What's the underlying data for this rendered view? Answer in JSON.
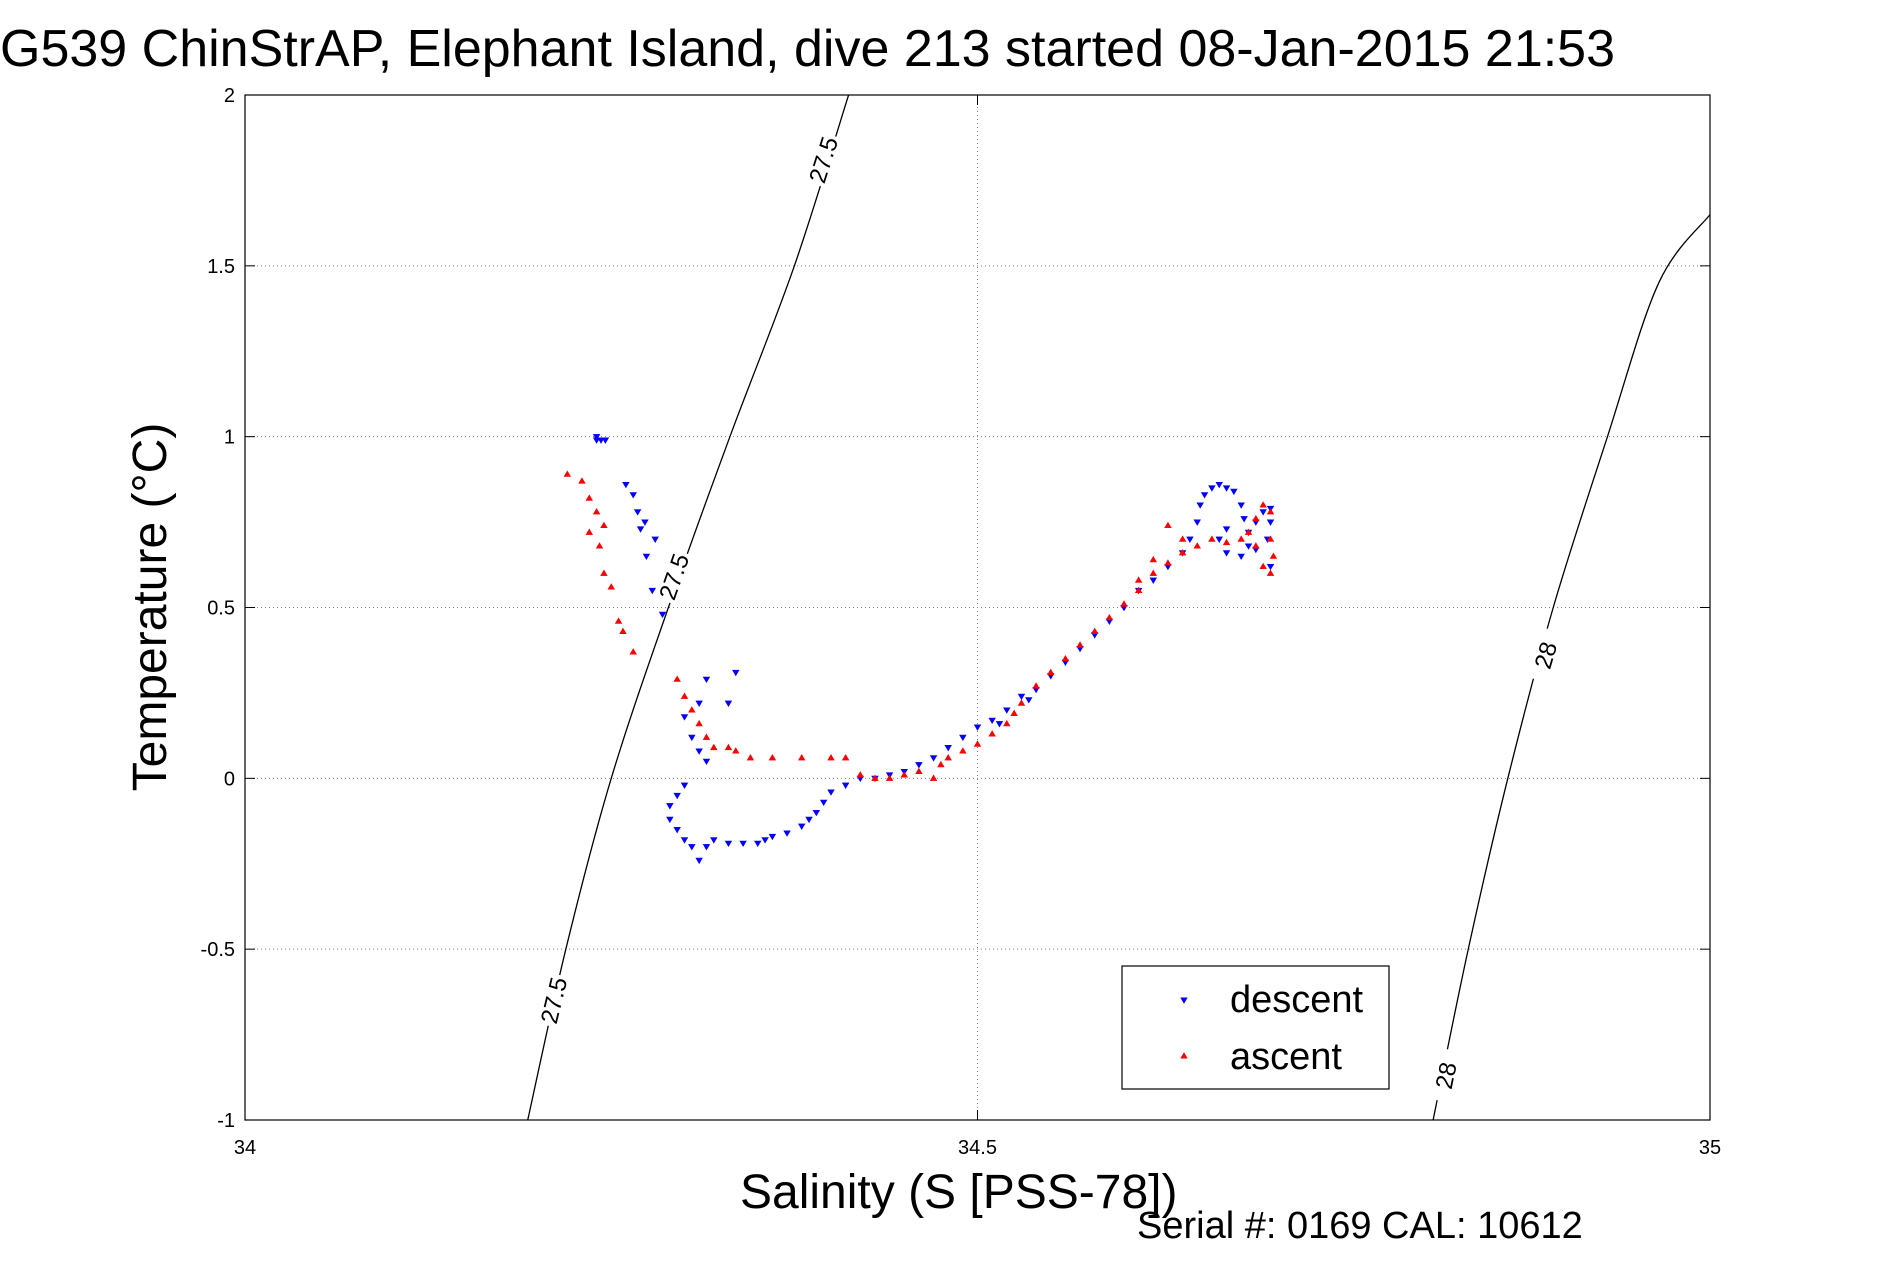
{
  "title": "G539 ChinStrAP, Elephant Island, dive 213 started 08-Jan-2015 21:53",
  "footer": "Serial #: 0169 CAL: 10612",
  "chart_data": {
    "type": "scatter",
    "xlabel": "Salinity (S [PSS-78])",
    "ylabel": "Temperature (°C)",
    "xlim": [
      34,
      35
    ],
    "ylim": [
      -1,
      2
    ],
    "xticks": [
      34,
      34.5,
      35
    ],
    "xtick_labels": [
      "34",
      "34.5",
      "35"
    ],
    "yticks": [
      -1,
      -0.5,
      0,
      0.5,
      1,
      1.5,
      2
    ],
    "ytick_labels": [
      "-1",
      "-0.5",
      "0",
      "0.5",
      "1",
      "1.5",
      "2"
    ],
    "grid": true,
    "legend_position": "bottom-right",
    "colors": {
      "descent": "#0000ff",
      "ascent": "#ff0000",
      "contour": "#000000"
    },
    "contours": [
      {
        "level_label": "27.5",
        "points": [
          [
            34.193,
            -1.0
          ],
          [
            34.219,
            -0.5
          ],
          [
            34.25,
            0.0
          ],
          [
            34.289,
            0.5
          ],
          [
            34.331,
            1.0
          ],
          [
            34.375,
            1.5
          ],
          [
            34.412,
            2.0
          ]
        ],
        "labels_at": [
          [
            34.211,
            -0.65
          ],
          [
            34.293,
            0.59
          ],
          [
            34.395,
            1.81
          ]
        ]
      },
      {
        "level_label": "28",
        "points": [
          [
            34.811,
            -1.0
          ],
          [
            34.835,
            -0.5
          ],
          [
            34.862,
            0.0
          ],
          [
            34.893,
            0.5
          ],
          [
            34.93,
            1.0
          ],
          [
            34.965,
            1.45
          ],
          [
            35.0,
            1.65
          ]
        ],
        "labels_at": [
          [
            34.82,
            -0.87
          ],
          [
            34.888,
            0.36
          ]
        ]
      }
    ],
    "series": [
      {
        "name": "descent",
        "marker": "triangle-down",
        "points": [
          [
            34.24,
            0.99
          ],
          [
            34.24,
            1.0
          ],
          [
            34.243,
            0.99
          ],
          [
            34.246,
            0.99
          ],
          [
            34.26,
            0.86
          ],
          [
            34.265,
            0.83
          ],
          [
            34.268,
            0.78
          ],
          [
            34.273,
            0.75
          ],
          [
            34.28,
            0.7
          ],
          [
            34.27,
            0.73
          ],
          [
            34.274,
            0.65
          ],
          [
            34.278,
            0.55
          ],
          [
            34.285,
            0.48
          ],
          [
            34.335,
            0.31
          ],
          [
            34.315,
            0.29
          ],
          [
            34.33,
            0.22
          ],
          [
            34.31,
            0.22
          ],
          [
            34.3,
            0.18
          ],
          [
            34.305,
            0.12
          ],
          [
            34.31,
            0.08
          ],
          [
            34.315,
            0.05
          ],
          [
            34.3,
            -0.02
          ],
          [
            34.295,
            -0.05
          ],
          [
            34.29,
            -0.08
          ],
          [
            34.29,
            -0.12
          ],
          [
            34.295,
            -0.15
          ],
          [
            34.3,
            -0.18
          ],
          [
            34.305,
            -0.2
          ],
          [
            34.31,
            -0.24
          ],
          [
            34.315,
            -0.2
          ],
          [
            34.32,
            -0.18
          ],
          [
            34.33,
            -0.19
          ],
          [
            34.34,
            -0.19
          ],
          [
            34.35,
            -0.19
          ],
          [
            34.355,
            -0.18
          ],
          [
            34.36,
            -0.17
          ],
          [
            34.37,
            -0.16
          ],
          [
            34.38,
            -0.14
          ],
          [
            34.385,
            -0.12
          ],
          [
            34.39,
            -0.1
          ],
          [
            34.395,
            -0.07
          ],
          [
            34.4,
            -0.04
          ],
          [
            34.41,
            -0.02
          ],
          [
            34.42,
            0.0
          ],
          [
            34.43,
            0.0
          ],
          [
            34.44,
            0.01
          ],
          [
            34.45,
            0.02
          ],
          [
            34.46,
            0.04
          ],
          [
            34.47,
            0.06
          ],
          [
            34.48,
            0.09
          ],
          [
            34.49,
            0.12
          ],
          [
            34.5,
            0.15
          ],
          [
            34.51,
            0.17
          ],
          [
            34.515,
            0.16
          ],
          [
            34.52,
            0.2
          ],
          [
            34.53,
            0.24
          ],
          [
            34.535,
            0.23
          ],
          [
            34.54,
            0.26
          ],
          [
            34.55,
            0.3
          ],
          [
            34.56,
            0.34
          ],
          [
            34.57,
            0.38
          ],
          [
            34.58,
            0.42
          ],
          [
            34.59,
            0.46
          ],
          [
            34.6,
            0.5
          ],
          [
            34.61,
            0.55
          ],
          [
            34.62,
            0.58
          ],
          [
            34.63,
            0.62
          ],
          [
            34.64,
            0.66
          ],
          [
            34.645,
            0.7
          ],
          [
            34.65,
            0.75
          ],
          [
            34.652,
            0.8
          ],
          [
            34.655,
            0.83
          ],
          [
            34.66,
            0.85
          ],
          [
            34.665,
            0.86
          ],
          [
            34.67,
            0.85
          ],
          [
            34.675,
            0.84
          ],
          [
            34.68,
            0.8
          ],
          [
            34.682,
            0.76
          ],
          [
            34.685,
            0.72
          ],
          [
            34.69,
            0.75
          ],
          [
            34.695,
            0.78
          ],
          [
            34.7,
            0.79
          ],
          [
            34.7,
            0.75
          ],
          [
            34.698,
            0.7
          ],
          [
            34.69,
            0.67
          ],
          [
            34.68,
            0.65
          ],
          [
            34.67,
            0.66
          ],
          [
            34.665,
            0.7
          ],
          [
            34.67,
            0.73
          ],
          [
            34.685,
            0.68
          ],
          [
            34.7,
            0.62
          ]
        ]
      },
      {
        "name": "ascent",
        "marker": "triangle-up",
        "points": [
          [
            34.22,
            0.89
          ],
          [
            34.23,
            0.87
          ],
          [
            34.235,
            0.82
          ],
          [
            34.24,
            0.78
          ],
          [
            34.245,
            0.74
          ],
          [
            34.235,
            0.72
          ],
          [
            34.242,
            0.68
          ],
          [
            34.245,
            0.6
          ],
          [
            34.25,
            0.56
          ],
          [
            34.255,
            0.46
          ],
          [
            34.258,
            0.43
          ],
          [
            34.265,
            0.37
          ],
          [
            34.295,
            0.29
          ],
          [
            34.3,
            0.24
          ],
          [
            34.305,
            0.2
          ],
          [
            34.31,
            0.16
          ],
          [
            34.315,
            0.12
          ],
          [
            34.32,
            0.09
          ],
          [
            34.33,
            0.09
          ],
          [
            34.335,
            0.08
          ],
          [
            34.345,
            0.06
          ],
          [
            34.36,
            0.06
          ],
          [
            34.38,
            0.06
          ],
          [
            34.4,
            0.06
          ],
          [
            34.41,
            0.06
          ],
          [
            34.42,
            0.01
          ],
          [
            34.43,
            0.0
          ],
          [
            34.44,
            0.0
          ],
          [
            34.45,
            0.01
          ],
          [
            34.46,
            0.02
          ],
          [
            34.47,
            0.0
          ],
          [
            34.475,
            0.04
          ],
          [
            34.48,
            0.06
          ],
          [
            34.49,
            0.08
          ],
          [
            34.5,
            0.1
          ],
          [
            34.51,
            0.13
          ],
          [
            34.52,
            0.16
          ],
          [
            34.525,
            0.19
          ],
          [
            34.53,
            0.22
          ],
          [
            34.54,
            0.27
          ],
          [
            34.55,
            0.31
          ],
          [
            34.56,
            0.35
          ],
          [
            34.57,
            0.39
          ],
          [
            34.58,
            0.43
          ],
          [
            34.59,
            0.47
          ],
          [
            34.6,
            0.51
          ],
          [
            34.61,
            0.55
          ],
          [
            34.62,
            0.6
          ],
          [
            34.63,
            0.63
          ],
          [
            34.64,
            0.66
          ],
          [
            34.65,
            0.68
          ],
          [
            34.66,
            0.7
          ],
          [
            34.67,
            0.69
          ],
          [
            34.68,
            0.7
          ],
          [
            34.685,
            0.72
          ],
          [
            34.69,
            0.76
          ],
          [
            34.695,
            0.8
          ],
          [
            34.7,
            0.78
          ],
          [
            34.7,
            0.7
          ],
          [
            34.702,
            0.65
          ],
          [
            34.7,
            0.6
          ],
          [
            34.695,
            0.62
          ],
          [
            34.69,
            0.68
          ],
          [
            34.64,
            0.7
          ],
          [
            34.63,
            0.74
          ],
          [
            34.62,
            0.64
          ],
          [
            34.61,
            0.58
          ]
        ]
      }
    ]
  }
}
